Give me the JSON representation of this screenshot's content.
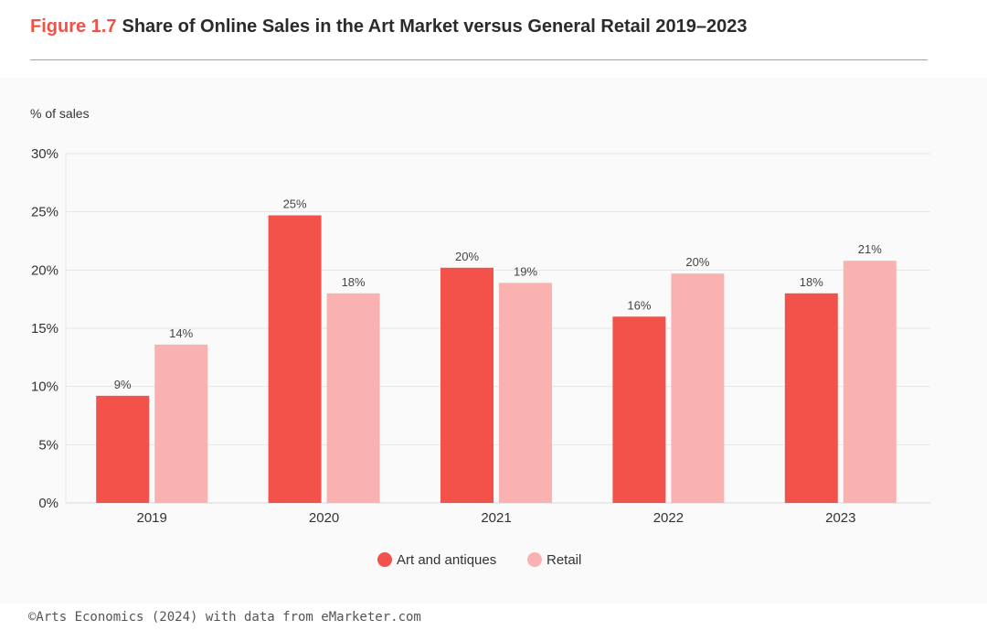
{
  "header": {
    "figure_label": "Figure 1.7",
    "title": "Share of Online Sales in the Art Market versus General Retail 2019–2023"
  },
  "source": "©Arts Economics (2024) with data from eMarketer.com",
  "colors": {
    "accent": "#f0524a",
    "art_series": "#f2524a",
    "retail_series": "#f9b2b0",
    "text": "#2b2b2b",
    "grid": "#e6e6e6"
  },
  "chart_data": {
    "type": "bar",
    "title": "Share of Online Sales in the Art Market versus General Retail 2019–2023",
    "xlabel": "",
    "ylabel": "% of sales",
    "ylim": [
      0,
      30
    ],
    "yticks": [
      0,
      5,
      10,
      15,
      20,
      25,
      30
    ],
    "ytick_labels": [
      "0%",
      "5%",
      "10%",
      "15%",
      "20%",
      "25%",
      "30%"
    ],
    "grid": true,
    "legend_position": "bottom-center",
    "categories": [
      "2019",
      "2020",
      "2021",
      "2022",
      "2023"
    ],
    "series": [
      {
        "name": "Art and antiques",
        "color": "#f2524a",
        "values": [
          9.2,
          24.7,
          20.2,
          16.0,
          18.0
        ],
        "labels": [
          "9%",
          "25%",
          "20%",
          "16%",
          "18%"
        ]
      },
      {
        "name": "Retail",
        "color": "#f9b2b0",
        "values": [
          13.6,
          18.0,
          18.9,
          19.7,
          20.8
        ],
        "labels": [
          "14%",
          "18%",
          "19%",
          "20%",
          "21%"
        ]
      }
    ]
  }
}
